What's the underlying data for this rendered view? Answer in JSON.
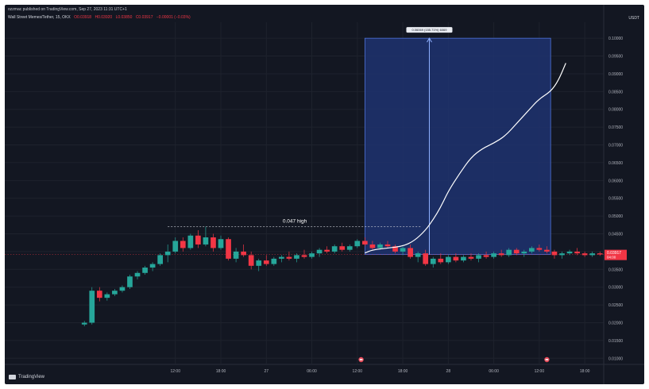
{
  "header": {
    "published": "ozzmac published on TradingView.com, Sep 27, 2023 11:31 UTC+1",
    "symbol": "Wall Street Memes/Tether, 15, OKX",
    "ohlc": [
      "O0.03918",
      "H0.03920",
      "L0.03850",
      "C0.03917",
      "−0.00001 (−0.03%)"
    ],
    "currency": "USDT"
  },
  "colors": {
    "background": "#131722",
    "candle_up": "#26a69a",
    "candle_down": "#f23645",
    "projection_box": "#1e3370",
    "projection_border": "#4f73d9",
    "projection_line": "#ffffff",
    "high_line": "#d1d4dc"
  },
  "annotations": {
    "high_label": "0.047 high",
    "projection_label": "0.06069 (155.71%) 6069"
  },
  "price_tag": {
    "value": "0.03917",
    "timer": "04:00"
  },
  "footer": {
    "logo": "TradingView"
  },
  "chart_data": {
    "type": "candlestick",
    "ylim": [
      0.0085,
      0.1045
    ],
    "y_ticks": [
      0.01,
      0.015,
      0.02,
      0.025,
      0.03,
      0.035,
      0.04,
      0.045,
      0.05,
      0.055,
      0.06,
      0.065,
      0.07,
      0.075,
      0.08,
      0.085,
      0.09,
      0.095,
      0.1
    ],
    "y_tick_labels": [
      "0.01000",
      "0.01500",
      "0.02000",
      "0.02500",
      "0.03000",
      "0.03500",
      "0.04000",
      "0.04500",
      "0.05000",
      "0.05500",
      "0.06000",
      "0.06500",
      "0.07000",
      "0.07500",
      "0.08000",
      "0.08500",
      "0.09000",
      "0.09500",
      "0.10000"
    ],
    "x_ticks": [
      {
        "t": 12,
        "label": "12:00"
      },
      {
        "t": 18,
        "label": "18:00"
      },
      {
        "t": 24,
        "label": "27"
      },
      {
        "t": 30,
        "label": "06:00"
      },
      {
        "t": 36,
        "label": "12:00"
      },
      {
        "t": 42,
        "label": "18:00"
      },
      {
        "t": 48,
        "label": "28"
      },
      {
        "t": 54,
        "label": "06:00"
      },
      {
        "t": 60,
        "label": "12:00"
      },
      {
        "t": 66,
        "label": "18:00"
      }
    ],
    "x_range": [
      -10.5,
      68.5
    ],
    "candles": [
      {
        "o": 0.0195,
        "h": 0.0205,
        "l": 0.019,
        "c": 0.02
      },
      {
        "o": 0.02,
        "h": 0.03,
        "l": 0.0195,
        "c": 0.029
      },
      {
        "o": 0.029,
        "h": 0.03,
        "l": 0.026,
        "c": 0.027
      },
      {
        "o": 0.027,
        "h": 0.0285,
        "l": 0.0262,
        "c": 0.028
      },
      {
        "o": 0.028,
        "h": 0.0295,
        "l": 0.0275,
        "c": 0.029
      },
      {
        "o": 0.029,
        "h": 0.0305,
        "l": 0.0285,
        "c": 0.03
      },
      {
        "o": 0.03,
        "h": 0.0335,
        "l": 0.0295,
        "c": 0.033
      },
      {
        "o": 0.033,
        "h": 0.0345,
        "l": 0.0322,
        "c": 0.034
      },
      {
        "o": 0.034,
        "h": 0.036,
        "l": 0.0335,
        "c": 0.0355
      },
      {
        "o": 0.0355,
        "h": 0.037,
        "l": 0.0345,
        "c": 0.0365
      },
      {
        "o": 0.0365,
        "h": 0.0395,
        "l": 0.036,
        "c": 0.039
      },
      {
        "o": 0.039,
        "h": 0.042,
        "l": 0.037,
        "c": 0.04
      },
      {
        "o": 0.04,
        "h": 0.044,
        "l": 0.0395,
        "c": 0.043
      },
      {
        "o": 0.043,
        "h": 0.044,
        "l": 0.04,
        "c": 0.041
      },
      {
        "o": 0.041,
        "h": 0.045,
        "l": 0.0405,
        "c": 0.0445
      },
      {
        "o": 0.0445,
        "h": 0.046,
        "l": 0.041,
        "c": 0.042
      },
      {
        "o": 0.042,
        "h": 0.047,
        "l": 0.0415,
        "c": 0.044
      },
      {
        "o": 0.044,
        "h": 0.045,
        "l": 0.04,
        "c": 0.041
      },
      {
        "o": 0.041,
        "h": 0.0445,
        "l": 0.0405,
        "c": 0.0435
      },
      {
        "o": 0.0435,
        "h": 0.044,
        "l": 0.0375,
        "c": 0.038
      },
      {
        "o": 0.038,
        "h": 0.041,
        "l": 0.037,
        "c": 0.04
      },
      {
        "o": 0.04,
        "h": 0.042,
        "l": 0.0385,
        "c": 0.039
      },
      {
        "o": 0.039,
        "h": 0.04,
        "l": 0.035,
        "c": 0.036
      },
      {
        "o": 0.036,
        "h": 0.038,
        "l": 0.0345,
        "c": 0.0375
      },
      {
        "o": 0.0375,
        "h": 0.039,
        "l": 0.036,
        "c": 0.0365
      },
      {
        "o": 0.0365,
        "h": 0.0385,
        "l": 0.036,
        "c": 0.038
      },
      {
        "o": 0.038,
        "h": 0.039,
        "l": 0.037,
        "c": 0.0385
      },
      {
        "o": 0.0385,
        "h": 0.04,
        "l": 0.0375,
        "c": 0.038
      },
      {
        "o": 0.038,
        "h": 0.0395,
        "l": 0.037,
        "c": 0.039
      },
      {
        "o": 0.039,
        "h": 0.0405,
        "l": 0.038,
        "c": 0.0385
      },
      {
        "o": 0.0385,
        "h": 0.04,
        "l": 0.038,
        "c": 0.0395
      },
      {
        "o": 0.0395,
        "h": 0.041,
        "l": 0.0385,
        "c": 0.0405
      },
      {
        "o": 0.0405,
        "h": 0.0415,
        "l": 0.0395,
        "c": 0.04
      },
      {
        "o": 0.04,
        "h": 0.042,
        "l": 0.0395,
        "c": 0.0415
      },
      {
        "o": 0.0415,
        "h": 0.0425,
        "l": 0.04,
        "c": 0.0405
      },
      {
        "o": 0.0405,
        "h": 0.042,
        "l": 0.04,
        "c": 0.0415
      },
      {
        "o": 0.0415,
        "h": 0.0435,
        "l": 0.041,
        "c": 0.043
      },
      {
        "o": 0.043,
        "h": 0.044,
        "l": 0.0415,
        "c": 0.042
      },
      {
        "o": 0.042,
        "h": 0.043,
        "l": 0.0405,
        "c": 0.041
      },
      {
        "o": 0.041,
        "h": 0.0425,
        "l": 0.0405,
        "c": 0.042
      },
      {
        "o": 0.042,
        "h": 0.043,
        "l": 0.041,
        "c": 0.0415
      },
      {
        "o": 0.0415,
        "h": 0.042,
        "l": 0.0395,
        "c": 0.04
      },
      {
        "o": 0.04,
        "h": 0.0415,
        "l": 0.039,
        "c": 0.041
      },
      {
        "o": 0.041,
        "h": 0.042,
        "l": 0.038,
        "c": 0.0385
      },
      {
        "o": 0.0385,
        "h": 0.04,
        "l": 0.037,
        "c": 0.0395
      },
      {
        "o": 0.0395,
        "h": 0.0405,
        "l": 0.036,
        "c": 0.0365
      },
      {
        "o": 0.0365,
        "h": 0.0385,
        "l": 0.0355,
        "c": 0.038
      },
      {
        "o": 0.038,
        "h": 0.0395,
        "l": 0.0365,
        "c": 0.037
      },
      {
        "o": 0.037,
        "h": 0.039,
        "l": 0.0365,
        "c": 0.0385
      },
      {
        "o": 0.0385,
        "h": 0.0395,
        "l": 0.037,
        "c": 0.0375
      },
      {
        "o": 0.0375,
        "h": 0.039,
        "l": 0.037,
        "c": 0.0385
      },
      {
        "o": 0.0385,
        "h": 0.0395,
        "l": 0.0375,
        "c": 0.038
      },
      {
        "o": 0.038,
        "h": 0.0395,
        "l": 0.037,
        "c": 0.039
      },
      {
        "o": 0.039,
        "h": 0.04,
        "l": 0.038,
        "c": 0.0385
      },
      {
        "o": 0.0385,
        "h": 0.04,
        "l": 0.038,
        "c": 0.0395
      },
      {
        "o": 0.0395,
        "h": 0.0405,
        "l": 0.0385,
        "c": 0.039
      },
      {
        "o": 0.039,
        "h": 0.041,
        "l": 0.0385,
        "c": 0.0405
      },
      {
        "o": 0.0405,
        "h": 0.041,
        "l": 0.039,
        "c": 0.0395
      },
      {
        "o": 0.0395,
        "h": 0.0405,
        "l": 0.0385,
        "c": 0.04
      },
      {
        "o": 0.04,
        "h": 0.0415,
        "l": 0.0395,
        "c": 0.041
      },
      {
        "o": 0.041,
        "h": 0.042,
        "l": 0.04,
        "c": 0.0405
      },
      {
        "o": 0.0405,
        "h": 0.0415,
        "l": 0.0395,
        "c": 0.04
      },
      {
        "o": 0.04,
        "h": 0.0405,
        "l": 0.038,
        "c": 0.039
      },
      {
        "o": 0.039,
        "h": 0.04,
        "l": 0.038,
        "c": 0.0395
      },
      {
        "o": 0.0395,
        "h": 0.0405,
        "l": 0.039,
        "c": 0.04
      },
      {
        "o": 0.04,
        "h": 0.041,
        "l": 0.039,
        "c": 0.0395
      },
      {
        "o": 0.0395,
        "h": 0.04,
        "l": 0.0385,
        "c": 0.039
      },
      {
        "o": 0.039,
        "h": 0.04,
        "l": 0.0385,
        "c": 0.0395
      },
      {
        "o": 0.0395,
        "h": 0.04,
        "l": 0.0388,
        "c": 0.0392
      },
      {
        "o": 0.0392,
        "h": 0.0398,
        "l": 0.0388,
        "c": 0.0394
      },
      {
        "o": 0.0394,
        "h": 0.0398,
        "l": 0.0385,
        "c": 0.0391
      },
      {
        "o": 0.0391,
        "h": 0.0396,
        "l": 0.0386,
        "c": 0.0392
      }
    ],
    "high_level": {
      "value": 0.047,
      "t_start": 11,
      "t_end": 44.5
    },
    "current_price": 0.03917,
    "projection_box": {
      "t_start": 37,
      "t_end": 61.5,
      "y_bottom": 0.03917,
      "y_top": 0.1
    },
    "arrow": {
      "t": 45.5,
      "from": 0.03917,
      "to": 0.1
    },
    "projection_path": [
      [
        37,
        0.0396
      ],
      [
        38,
        0.0405
      ],
      [
        40,
        0.041
      ],
      [
        42,
        0.0415
      ],
      [
        43.5,
        0.043
      ],
      [
        45,
        0.046
      ],
      [
        46,
        0.049
      ],
      [
        47,
        0.0525
      ],
      [
        48,
        0.057
      ],
      [
        49.5,
        0.062
      ],
      [
        51,
        0.0665
      ],
      [
        52.5,
        0.069
      ],
      [
        54,
        0.0705
      ],
      [
        55.5,
        0.0725
      ],
      [
        57,
        0.076
      ],
      [
        58.5,
        0.0795
      ],
      [
        60,
        0.083
      ],
      [
        61.5,
        0.085
      ],
      [
        62.5,
        0.088
      ],
      [
        63.5,
        0.093
      ]
    ],
    "event_markers": [
      {
        "t": 36.5
      },
      {
        "t": 61
      }
    ]
  }
}
